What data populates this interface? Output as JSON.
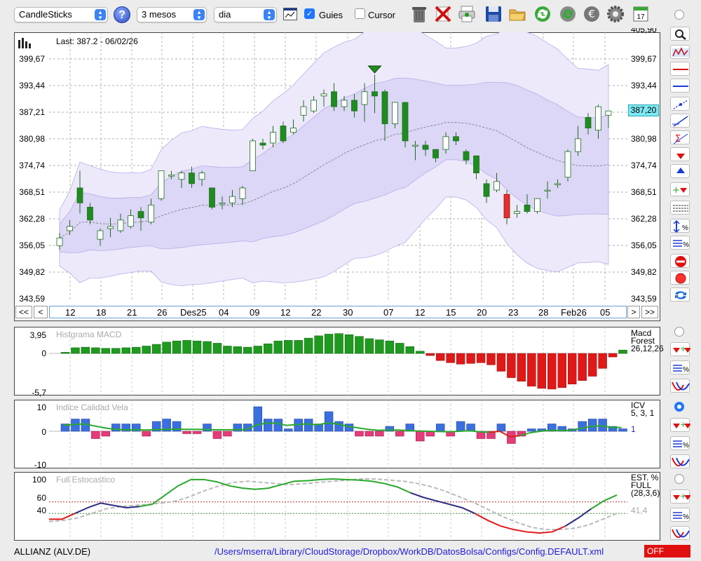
{
  "toolbar": {
    "chart_type": "CandleSticks",
    "period": "3 mesos",
    "interval": "dia",
    "guides_label": "Guies",
    "guides_checked": true,
    "cursor_label": "Cursor",
    "cursor_checked": false,
    "icons": [
      "help-icon",
      "chart-icon",
      "trash-icon",
      "delete-icon",
      "print-icon",
      "save-icon",
      "folder-icon",
      "refresh-icon",
      "update-icon",
      "euro-icon",
      "gear-icon",
      "calendar-icon"
    ],
    "calendar_day": "17"
  },
  "main_chart": {
    "last_label": "Last: 387.2 - 06/02/26",
    "current_price_badge": "387,20",
    "y_ticks": [
      "399,67",
      "393,44",
      "387,21",
      "380,98",
      "374,74",
      "368,51",
      "362,28",
      "356,05",
      "349,82",
      "343,59"
    ],
    "y_top_partial": "405,90",
    "x_ticks": [
      "12",
      "18",
      "21",
      "26",
      "Des25",
      "04",
      "09",
      "12",
      "22",
      "30",
      "07",
      "12",
      "15",
      "20",
      "23",
      "28",
      "Feb26",
      "05"
    ],
    "nav": {
      "first": "<<",
      "prev": "<",
      "next": ">",
      "last": ">>"
    }
  },
  "chart_data": [
    {
      "type": "candlestick",
      "title": "",
      "ylim": [
        343.59,
        405.9
      ],
      "candles": [
        {
          "o": 356,
          "c": 357.8,
          "h": 359,
          "l": 355
        },
        {
          "o": 359.5,
          "c": 360.5,
          "h": 362,
          "l": 358.5
        },
        {
          "o": 369.5,
          "c": 366,
          "h": 373.5,
          "l": 363.5
        },
        {
          "o": 365,
          "c": 362,
          "h": 366,
          "l": 361
        },
        {
          "o": 357.5,
          "c": 359.5,
          "h": 360,
          "l": 356
        },
        {
          "o": 360,
          "c": 360.5,
          "h": 362.5,
          "l": 358
        },
        {
          "o": 359.5,
          "c": 362,
          "h": 363.5,
          "l": 359
        },
        {
          "o": 360.5,
          "c": 363,
          "h": 364.5,
          "l": 360
        },
        {
          "o": 364,
          "c": 362.5,
          "h": 365,
          "l": 359.5
        },
        {
          "o": 361.5,
          "c": 365.5,
          "h": 367,
          "l": 361
        },
        {
          "o": 367,
          "c": 373.5,
          "h": 373.5,
          "l": 366.5
        },
        {
          "o": 372.5,
          "c": 372.5,
          "h": 373.5,
          "l": 371.5
        },
        {
          "o": 371.5,
          "c": 373,
          "h": 373.5,
          "l": 369.5
        },
        {
          "o": 373,
          "c": 370.5,
          "h": 374.5,
          "l": 369.5
        },
        {
          "o": 371.5,
          "c": 373,
          "h": 373.5,
          "l": 370
        },
        {
          "o": 369.5,
          "c": 365,
          "h": 369.5,
          "l": 364.5
        },
        {
          "o": 366,
          "c": 366,
          "h": 367.5,
          "l": 364.5
        },
        {
          "o": 366,
          "c": 367.5,
          "h": 369,
          "l": 365
        },
        {
          "o": 367,
          "c": 369.5,
          "h": 370,
          "l": 365.5
        },
        {
          "o": 373.5,
          "c": 380.5,
          "h": 381,
          "l": 373.5
        },
        {
          "o": 380,
          "c": 379.5,
          "h": 381,
          "l": 378.5
        },
        {
          "o": 380,
          "c": 382.5,
          "h": 384,
          "l": 379
        },
        {
          "o": 384,
          "c": 380.5,
          "h": 385,
          "l": 380
        },
        {
          "o": 382.5,
          "c": 383.5,
          "h": 385.5,
          "l": 382
        },
        {
          "o": 386.5,
          "c": 388.5,
          "h": 390,
          "l": 385
        },
        {
          "o": 387.5,
          "c": 390,
          "h": 391,
          "l": 387
        },
        {
          "o": 391,
          "c": 391.5,
          "h": 392.5,
          "l": 388.5
        },
        {
          "o": 392,
          "c": 388.5,
          "h": 394,
          "l": 387.5
        },
        {
          "o": 388.5,
          "c": 390,
          "h": 391,
          "l": 387.5
        },
        {
          "o": 390,
          "c": 387.5,
          "h": 391.5,
          "l": 386
        },
        {
          "o": 389,
          "c": 392,
          "h": 394,
          "l": 385
        },
        {
          "o": 392,
          "c": 391,
          "h": 396,
          "l": 387
        },
        {
          "o": 392,
          "c": 384.5,
          "h": 392.5,
          "l": 380.5
        },
        {
          "o": 384.5,
          "c": 389.5,
          "h": 389.5,
          "l": 383.5
        },
        {
          "o": 389.5,
          "c": 380.5,
          "h": 389.5,
          "l": 379
        },
        {
          "o": 379.5,
          "c": 379.5,
          "h": 380.5,
          "l": 376
        },
        {
          "o": 379.5,
          "c": 378.5,
          "h": 380.5,
          "l": 377
        },
        {
          "o": 378.5,
          "c": 376.5,
          "h": 378.5,
          "l": 375.5
        },
        {
          "o": 378.5,
          "c": 381.5,
          "h": 382.5,
          "l": 377.5
        },
        {
          "o": 381.5,
          "c": 380.5,
          "h": 382.5,
          "l": 379.5
        },
        {
          "o": 378,
          "c": 376,
          "h": 378.5,
          "l": 375
        },
        {
          "o": 377,
          "c": 373,
          "h": 377,
          "l": 371.5
        },
        {
          "o": 370.5,
          "c": 367.5,
          "h": 371.5,
          "l": 366
        },
        {
          "o": 369,
          "c": 371,
          "h": 373,
          "l": 368.5
        },
        {
          "o": 368,
          "c": 362.5,
          "h": 369,
          "l": 361
        },
        {
          "o": 363.5,
          "c": 364,
          "h": 365.5,
          "l": 362.5
        },
        {
          "o": 365.5,
          "c": 364,
          "h": 368,
          "l": 363.5
        },
        {
          "o": 364,
          "c": 367,
          "h": 367,
          "l": 363.5
        },
        {
          "o": 369,
          "c": 369,
          "h": 371,
          "l": 367
        },
        {
          "o": 370.5,
          "c": 370.5,
          "h": 371.5,
          "l": 369.5
        },
        {
          "o": 372,
          "c": 378,
          "h": 378.5,
          "l": 371
        },
        {
          "o": 378,
          "c": 381,
          "h": 384,
          "l": 377
        },
        {
          "o": 386,
          "c": 383.5,
          "h": 387,
          "l": 382
        },
        {
          "o": 383,
          "c": 388.5,
          "h": 389,
          "l": 381
        },
        {
          "o": 386.5,
          "c": 387.5,
          "h": 387.5,
          "l": 383.5
        }
      ],
      "candle_colors": {
        "up": "#ffffff",
        "down": "#1e8c1e",
        "red_down": "#e03030"
      }
    },
    {
      "type": "bar",
      "title": "Histgrama MACD",
      "right_label": [
        "Macd",
        "Forest",
        "26,12,26"
      ],
      "y_ticks": [
        "3,95",
        "0",
        "-5,7"
      ],
      "ylim": [
        -5.7,
        3.95
      ],
      "values": [
        0.2,
        1.0,
        1.1,
        1.0,
        0.9,
        0.9,
        1.0,
        1.1,
        1.3,
        1.6,
        2.0,
        2.2,
        2.3,
        2.2,
        2.1,
        1.8,
        1.3,
        1.2,
        1.1,
        1.3,
        1.7,
        2.2,
        2.3,
        2.3,
        2.7,
        3.1,
        3.4,
        3.5,
        3.3,
        3.0,
        2.6,
        2.4,
        2.2,
        1.8,
        1.2,
        0.4,
        -0.3,
        -1.0,
        -1.3,
        -1.5,
        -1.4,
        -1.3,
        -1.6,
        -2.5,
        -3.4,
        -3.9,
        -4.6,
        -4.9,
        -5.0,
        -4.8,
        -4.3,
        -3.8,
        -3.2,
        -2.1,
        -0.5,
        0.6
      ]
    },
    {
      "type": "bar",
      "title": "Indice Calidad Vela",
      "right_label": [
        "ICV",
        "5, 3, 1"
      ],
      "signal_value": "1",
      "y_ticks": [
        "10",
        "0",
        "-10"
      ],
      "ylim": [
        -10,
        10
      ],
      "values": [
        3,
        5,
        5,
        -3,
        -2,
        3,
        3,
        3,
        -2,
        4,
        5,
        4,
        -1,
        -1,
        3,
        -3,
        -2,
        3,
        3,
        10,
        5,
        5,
        1,
        5,
        5,
        3,
        8,
        4,
        3,
        -2,
        -2,
        -2,
        2,
        -2,
        3,
        -4,
        -2,
        3,
        -2,
        4,
        3,
        -3,
        -3,
        3,
        -5,
        -2,
        1,
        1,
        3,
        2,
        1,
        4,
        5,
        5,
        2,
        1
      ],
      "signal_line": [
        2.5,
        2.8,
        3,
        2.2,
        1.4,
        0.8,
        0.6,
        0.6,
        0.5,
        0.6,
        0.8,
        0.9,
        0.8,
        0.8,
        0.7,
        0.6,
        0.6,
        0.6,
        0.7,
        2.5,
        3.4,
        3.3,
        2.4,
        2.8,
        3,
        2.6,
        3.4,
        3,
        2,
        1.4,
        0.8,
        0.4,
        0.5,
        0.5,
        0.3,
        0.1,
        0,
        -0.1,
        -0.2,
        0,
        0.2,
        -0.2,
        -0.4,
        0,
        -2.2,
        -1.8,
        -0.6,
        0,
        0.4,
        0.3,
        0.4,
        1.2,
        2,
        2.2,
        1.6,
        1.5
      ]
    },
    {
      "type": "line",
      "title": "Full Estocastico",
      "right_label": [
        "EST. %",
        "FULL",
        "(28,3,6)"
      ],
      "signal_value": "41,4",
      "y_ticks": [
        "100",
        "60",
        "40"
      ],
      "ylim": [
        0,
        105
      ],
      "series": [
        {
          "values": [
            30,
            30,
            40,
            50,
            58,
            54,
            50,
            52,
            56,
            72,
            88,
            99,
            99,
            95,
            88,
            84,
            82,
            84,
            90,
            96,
            97,
            99,
            100,
            99,
            98,
            96,
            92,
            86,
            76,
            68,
            62,
            56,
            50,
            40,
            28,
            18,
            12,
            8,
            6,
            8,
            18,
            32,
            48,
            62,
            72
          ]
        },
        {
          "values": [
            26,
            28,
            32,
            40,
            48,
            52,
            54,
            56,
            58,
            62,
            70,
            80,
            88,
            94,
            96,
            94,
            92,
            90,
            92,
            94,
            96,
            98,
            100,
            100,
            98,
            96,
            92,
            86,
            78,
            68,
            58,
            46,
            34,
            24,
            16,
            12,
            12,
            14,
            20,
            30,
            40
          ]
        }
      ]
    }
  ],
  "status_bar": {
    "instrument": "ALLIANZ (ALV.DE)",
    "config_path": "/Users/mserra/Library/CloudStorage/Dropbox/WorkDB/DatosBolsa/Configs/Config.DEFAULT.xml",
    "status": "OFF"
  }
}
